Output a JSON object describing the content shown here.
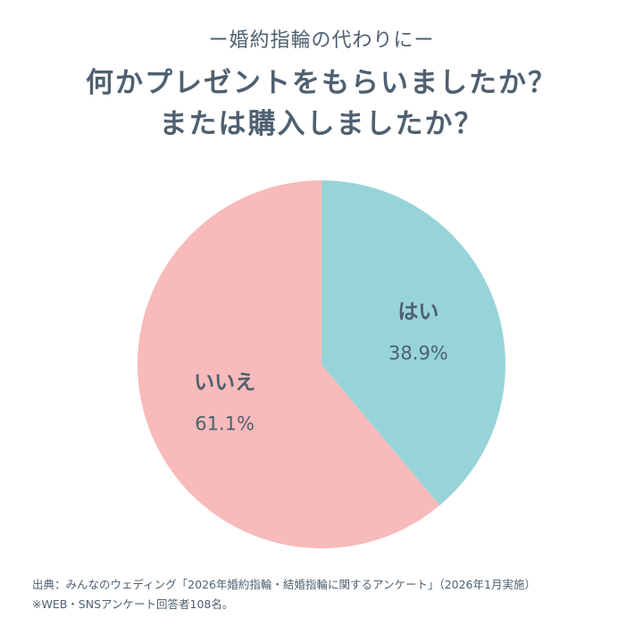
{
  "header": {
    "subtitle": "ー婚約指輪の代わりにー",
    "title_line1": "何かプレゼントをもらいましたか？",
    "title_line2": "または購入しましたか？"
  },
  "chart_data": {
    "type": "pie",
    "title": "何かプレゼントをもらいましたか？または購入しましたか？",
    "slices": [
      {
        "label": "はい",
        "value": 38.9,
        "display": "38.9%",
        "color": "#97d4d9"
      },
      {
        "label": "いいえ",
        "value": 61.1,
        "display": "61.1%",
        "color": "#f8baba"
      }
    ],
    "start_position": "top",
    "direction": "clockwise"
  },
  "footer": {
    "source": "出典：みんなのウェディング「2026年婚約指輪・結婚指輪に関するアンケート」（2026年1月実施）",
    "note": "※WEB・SNSアンケート回答者108名。"
  }
}
